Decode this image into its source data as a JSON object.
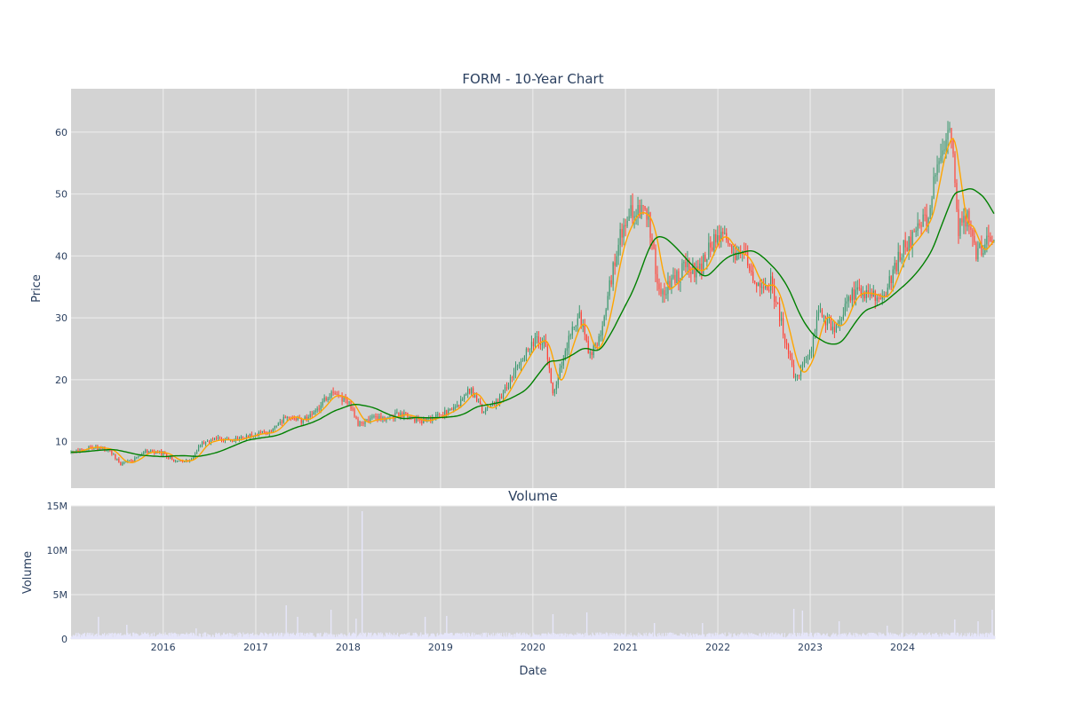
{
  "chart_data": [
    {
      "type": "candlestick",
      "title": "FORM - 10-Year Chart",
      "ylabel": "Price",
      "ylim": [
        2.5,
        67
      ],
      "yticks": [
        10,
        20,
        30,
        40,
        50,
        60
      ],
      "xlim": [
        "2015-01-02",
        "2024-12-31"
      ],
      "grid": true,
      "colors": {
        "up": "#3d9970",
        "down": "#ff4136",
        "ma_short": "#ffa500",
        "ma_long": "#008000",
        "plot_bg": "#d3d3d3"
      },
      "price_trend": [
        [
          "2015-01-02",
          8.3
        ],
        [
          "2015-03-15",
          9.2
        ],
        [
          "2015-06-01",
          8.7
        ],
        [
          "2015-07-15",
          6.4
        ],
        [
          "2015-09-01",
          6.9
        ],
        [
          "2015-10-15",
          8.4
        ],
        [
          "2015-12-31",
          8.2
        ],
        [
          "2016-02-15",
          6.8
        ],
        [
          "2016-04-15",
          7.0
        ],
        [
          "2016-06-01",
          9.8
        ],
        [
          "2016-08-01",
          10.4
        ],
        [
          "2016-10-01",
          10.2
        ],
        [
          "2016-12-31",
          11.3
        ],
        [
          "2017-03-01",
          11.5
        ],
        [
          "2017-05-01",
          14.3
        ],
        [
          "2017-07-01",
          13.3
        ],
        [
          "2017-09-01",
          15.2
        ],
        [
          "2017-10-20",
          17.8
        ],
        [
          "2017-12-31",
          16.5
        ],
        [
          "2018-02-10",
          12.8
        ],
        [
          "2018-04-01",
          13.6
        ],
        [
          "2018-06-01",
          13.8
        ],
        [
          "2018-08-01",
          14.5
        ],
        [
          "2018-10-15",
          13.2
        ],
        [
          "2018-12-31",
          14.3
        ],
        [
          "2019-03-01",
          15.6
        ],
        [
          "2019-04-30",
          18.5
        ],
        [
          "2019-06-15",
          15.0
        ],
        [
          "2019-08-15",
          16.5
        ],
        [
          "2019-10-15",
          21.0
        ],
        [
          "2019-12-31",
          26.2
        ],
        [
          "2020-02-15",
          26.5
        ],
        [
          "2020-03-20",
          17.5
        ],
        [
          "2020-05-15",
          26.0
        ],
        [
          "2020-06-30",
          30.5
        ],
        [
          "2020-08-15",
          23.5
        ],
        [
          "2020-10-01",
          28.5
        ],
        [
          "2020-11-30",
          42.0
        ],
        [
          "2021-01-31",
          47.5
        ],
        [
          "2021-03-31",
          46.0
        ],
        [
          "2021-05-15",
          34.0
        ],
        [
          "2021-07-01",
          35.5
        ],
        [
          "2021-09-01",
          38.5
        ],
        [
          "2021-10-15",
          37.0
        ],
        [
          "2021-12-31",
          44.0
        ],
        [
          "2022-02-28",
          40.5
        ],
        [
          "2022-04-15",
          40.0
        ],
        [
          "2022-05-31",
          35.0
        ],
        [
          "2022-08-01",
          35.5
        ],
        [
          "2022-10-01",
          25.5
        ],
        [
          "2022-11-01",
          20.0
        ],
        [
          "2022-12-31",
          24.0
        ],
        [
          "2023-02-01",
          31.0
        ],
        [
          "2023-04-15",
          28.0
        ],
        [
          "2023-06-15",
          34.0
        ],
        [
          "2023-08-15",
          34.0
        ],
        [
          "2023-10-15",
          33.0
        ],
        [
          "2023-12-31",
          41.0
        ],
        [
          "2024-02-15",
          43.0
        ],
        [
          "2024-04-15",
          47.0
        ],
        [
          "2024-05-15",
          56.0
        ],
        [
          "2024-07-10",
          61.0
        ],
        [
          "2024-08-05",
          44.0
        ],
        [
          "2024-09-15",
          46.0
        ],
        [
          "2024-10-15",
          40.0
        ],
        [
          "2024-12-31",
          44.0
        ]
      ]
    },
    {
      "type": "bar",
      "title": "Volume",
      "xlabel": "Date",
      "ylabel": "Volume",
      "ylim": [
        0,
        15000000
      ],
      "yticks": [
        0,
        5000000,
        10000000,
        15000000
      ],
      "ytick_labels": [
        "0",
        "5M",
        "10M",
        "15M"
      ],
      "xticks": [
        "2016-01-01",
        "2017-01-01",
        "2018-01-01",
        "2019-01-01",
        "2020-01-01",
        "2021-01-01",
        "2022-01-01",
        "2023-01-01",
        "2024-01-01"
      ],
      "xtick_labels": [
        "2016",
        "2017",
        "2018",
        "2019",
        "2020",
        "2021",
        "2022",
        "2023",
        "2024"
      ],
      "grid": true,
      "colors": {
        "bar": "#e6e6fa",
        "plot_bg": "#d3d3d3"
      },
      "baseline_volume": 500000,
      "spikes": [
        [
          "2015-04-20",
          2500000
        ],
        [
          "2015-08-10",
          1600000
        ],
        [
          "2016-05-10",
          1200000
        ],
        [
          "2017-05-01",
          3800000
        ],
        [
          "2017-06-15",
          2500000
        ],
        [
          "2017-10-25",
          3300000
        ],
        [
          "2018-02-25",
          14400000
        ],
        [
          "2018-02-01",
          2300000
        ],
        [
          "2018-11-01",
          2500000
        ],
        [
          "2019-01-25",
          2600000
        ],
        [
          "2020-03-20",
          2800000
        ],
        [
          "2020-08-01",
          3000000
        ],
        [
          "2021-04-25",
          1800000
        ],
        [
          "2021-11-01",
          1800000
        ],
        [
          "2022-10-28",
          3400000
        ],
        [
          "2022-12-01",
          3200000
        ],
        [
          "2023-04-25",
          2000000
        ],
        [
          "2023-11-01",
          1500000
        ],
        [
          "2024-07-25",
          2200000
        ],
        [
          "2024-10-25",
          2000000
        ],
        [
          "2024-12-20",
          3300000
        ]
      ]
    }
  ]
}
